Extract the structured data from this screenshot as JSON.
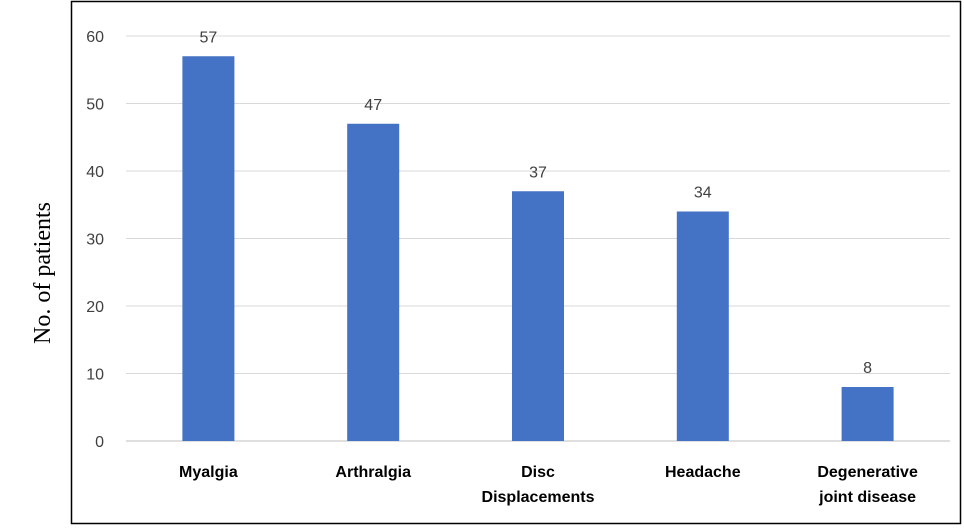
{
  "chart_data": {
    "type": "bar",
    "categories": [
      [
        "Myalgia"
      ],
      [
        "Arthralgia"
      ],
      [
        "Disc",
        "Displacements"
      ],
      [
        "Headache"
      ],
      [
        "Degenerative",
        "joint disease"
      ]
    ],
    "values": [
      57,
      47,
      37,
      34,
      8
    ],
    "ylabel": "No. of patients",
    "ylim": [
      0,
      60
    ],
    "yticks": [
      0,
      10,
      20,
      30,
      40,
      50,
      60
    ],
    "grid": true,
    "legend": "none",
    "bar_color": "#4472C4"
  }
}
